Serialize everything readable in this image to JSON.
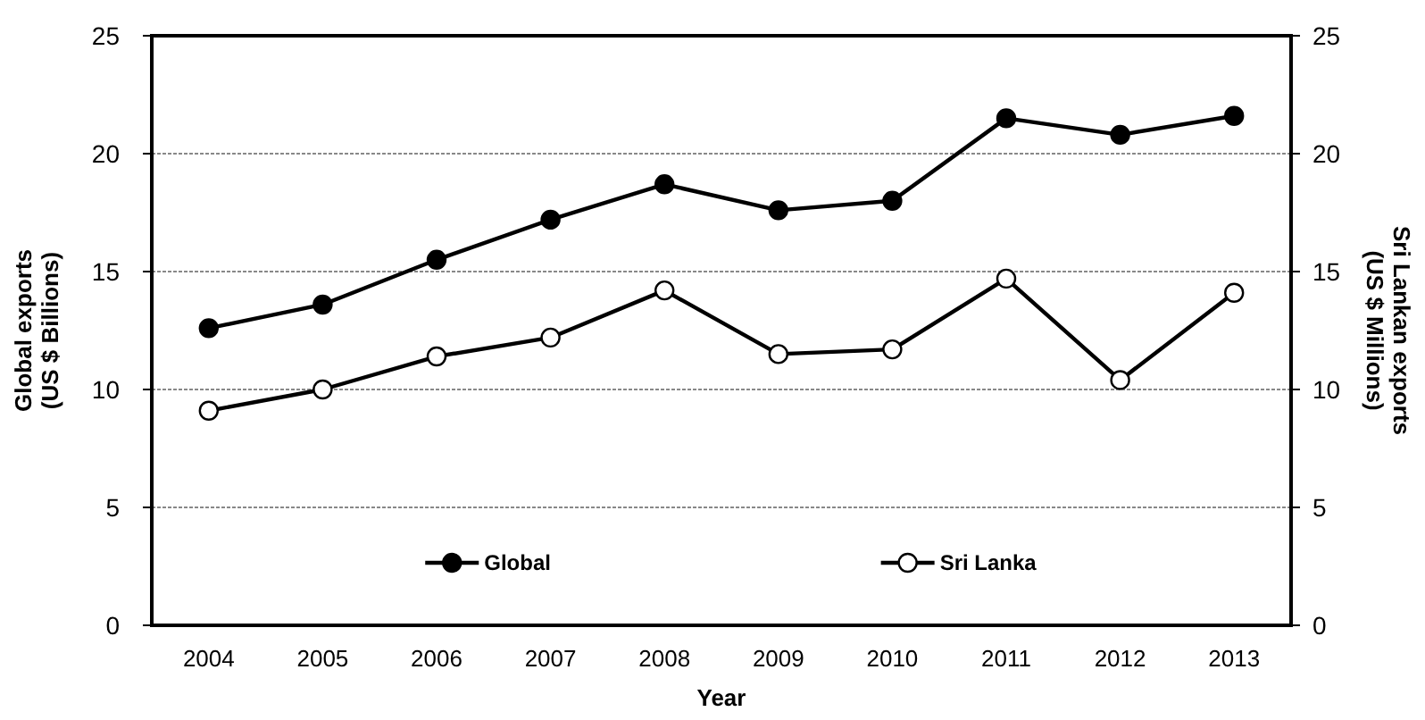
{
  "chart_data": {
    "type": "line",
    "xlabel": "Year",
    "ylabel": "Global exports\n(US $ Billions)",
    "y2label": "Sri Lankan exports\n(US $ Millions)",
    "categories": [
      "2004",
      "2005",
      "2006",
      "2007",
      "2008",
      "2009",
      "2010",
      "2011",
      "2012",
      "2013"
    ],
    "series": [
      {
        "name": "Global",
        "color": "#000000",
        "values": [
          12.6,
          13.6,
          15.5,
          17.2,
          18.7,
          17.6,
          18.0,
          21.5,
          20.8,
          21.6
        ]
      },
      {
        "name": "Sri Lanka",
        "color": "#000000",
        "axis": "y2",
        "values": [
          9.1,
          10.0,
          11.4,
          12.2,
          14.2,
          11.5,
          11.7,
          14.7,
          10.4,
          14.1
        ]
      }
    ],
    "ylim": [
      0,
      25
    ],
    "yticks": [
      0,
      5,
      10,
      15,
      20,
      25
    ],
    "y2lim": [
      0,
      25
    ],
    "y2ticks": [
      0,
      5,
      10,
      15,
      20,
      25
    ],
    "grid": "y",
    "legend": "bottom",
    "marker": "circle",
    "line_style": "solid"
  }
}
